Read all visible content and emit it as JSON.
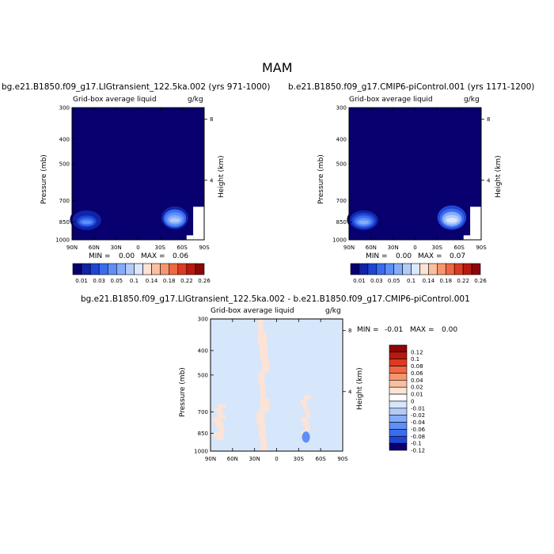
{
  "page_title": "MAM",
  "panels": [
    {
      "case_title": "bg.e21.B1850.f09_g17.LIGtransient_122.5ka.002 (yrs 971-1000)",
      "variable": "Grid-box average liquid",
      "units": "g/kg",
      "ylabel": "Pressure (mb)",
      "ylabel_right": "Height (km)",
      "min_label": "MIN =",
      "min_value": "0.00",
      "max_label": "MAX =",
      "max_value": "0.06",
      "colorbar_labels": [
        "0.01",
        "0.03",
        "0.05",
        "0.1",
        "0.14",
        "0.18",
        "0.22",
        "0.26"
      ]
    },
    {
      "case_title": "b.e21.B1850.f09_g17.CMIP6-piControl.001 (yrs 1171-1200)",
      "variable": "Grid-box average liquid",
      "units": "g/kg",
      "ylabel": "Pressure (mb)",
      "ylabel_right": "Height (km)",
      "min_label": "MIN =",
      "min_value": "0.00",
      "max_label": "MAX =",
      "max_value": "0.07",
      "colorbar_labels": [
        "0.01",
        "0.03",
        "0.05",
        "0.1",
        "0.14",
        "0.18",
        "0.22",
        "0.26"
      ]
    },
    {
      "case_title": "bg.e21.B1850.f09_g17.LIGtransient_122.5ka.002 - b.e21.B1850.f09_g17.CMIP6-piControl.001",
      "variable": "Grid-box average liquid",
      "units": "g/kg",
      "ylabel": "Pressure (mb)",
      "ylabel_right": "Height (km)",
      "min_label": "MIN =",
      "min_value": "-0.01",
      "max_label": "MAX =",
      "max_value": "0.00",
      "colorbar_labels": [
        "0.12",
        "0.1",
        "0.08",
        "0.06",
        "0.04",
        "0.02",
        "0.01",
        "0",
        "-0.01",
        "-0.02",
        "-0.04",
        "-0.06",
        "-0.08",
        "-0.1",
        "-0.12"
      ]
    }
  ],
  "chart_data": {
    "type": "heatmap",
    "x_ticks": [
      "90N",
      "60N",
      "30N",
      "0",
      "30S",
      "60S",
      "90S"
    ],
    "x_values": [
      90,
      60,
      30,
      0,
      -30,
      -60,
      -90
    ],
    "y_ticks": [
      "300",
      "400",
      "500",
      "700",
      "850",
      "1000"
    ],
    "y_values_mb": [
      300,
      400,
      500,
      700,
      850,
      1000
    ],
    "height_ticks": [
      "8",
      "4"
    ],
    "height_values_km": [
      8,
      4
    ],
    "ylim_mb": [
      1000,
      300
    ],
    "xlim_lat": [
      90,
      -90
    ],
    "abs_colors": [
      "#08006e",
      "#1024a8",
      "#1e46d6",
      "#3a6ced",
      "#5e8ef7",
      "#86acf9",
      "#b2cbfb",
      "#dbe7fd",
      "#fde3d5",
      "#fbbfa0",
      "#f7966e",
      "#ef6744",
      "#de3a22",
      "#b91a0f",
      "#8b0707"
    ],
    "diff_colors": [
      "#8b0707",
      "#b91a0f",
      "#de3a22",
      "#ef6744",
      "#f7966e",
      "#fbbfa0",
      "#fde3d5",
      "#ffffff",
      "#d6e6fb",
      "#b2cbfb",
      "#86acf9",
      "#5e8ef7",
      "#3a6ced",
      "#1e46d6",
      "#08006e"
    ],
    "panels": [
      {
        "background_value": 0.005,
        "features": [
          {
            "lat": 70,
            "p": 855,
            "dlat": 22,
            "dp": 140,
            "max": 0.04
          },
          {
            "lat": -50,
            "p": 840,
            "dlat": 20,
            "dp": 160,
            "max": 0.06
          }
        ],
        "masked": [
          {
            "lat_from": -75,
            "lat_to": -90,
            "p_from": 740,
            "p_to": 1000
          }
        ]
      },
      {
        "background_value": 0.005,
        "features": [
          {
            "lat": 70,
            "p": 855,
            "dlat": 22,
            "dp": 140,
            "max": 0.045
          },
          {
            "lat": -50,
            "p": 840,
            "dlat": 22,
            "dp": 170,
            "max": 0.07
          }
        ],
        "masked": [
          {
            "lat_from": -75,
            "lat_to": -90,
            "p_from": 740,
            "p_to": 1000
          }
        ]
      },
      {
        "background_value": -0.005,
        "positive_bands": [
          {
            "lat_from": 25,
            "lat_to": 12,
            "p_from": 300,
            "p_to": 1000
          },
          {
            "lat_from": 85,
            "lat_to": 70,
            "p_from": 650,
            "p_to": 900
          },
          {
            "lat_from": -35,
            "lat_to": -45,
            "p_from": 600,
            "p_to": 900
          }
        ],
        "negative_spots": [
          {
            "lat": -40,
            "p": 880,
            "value": -0.01
          }
        ]
      }
    ]
  }
}
